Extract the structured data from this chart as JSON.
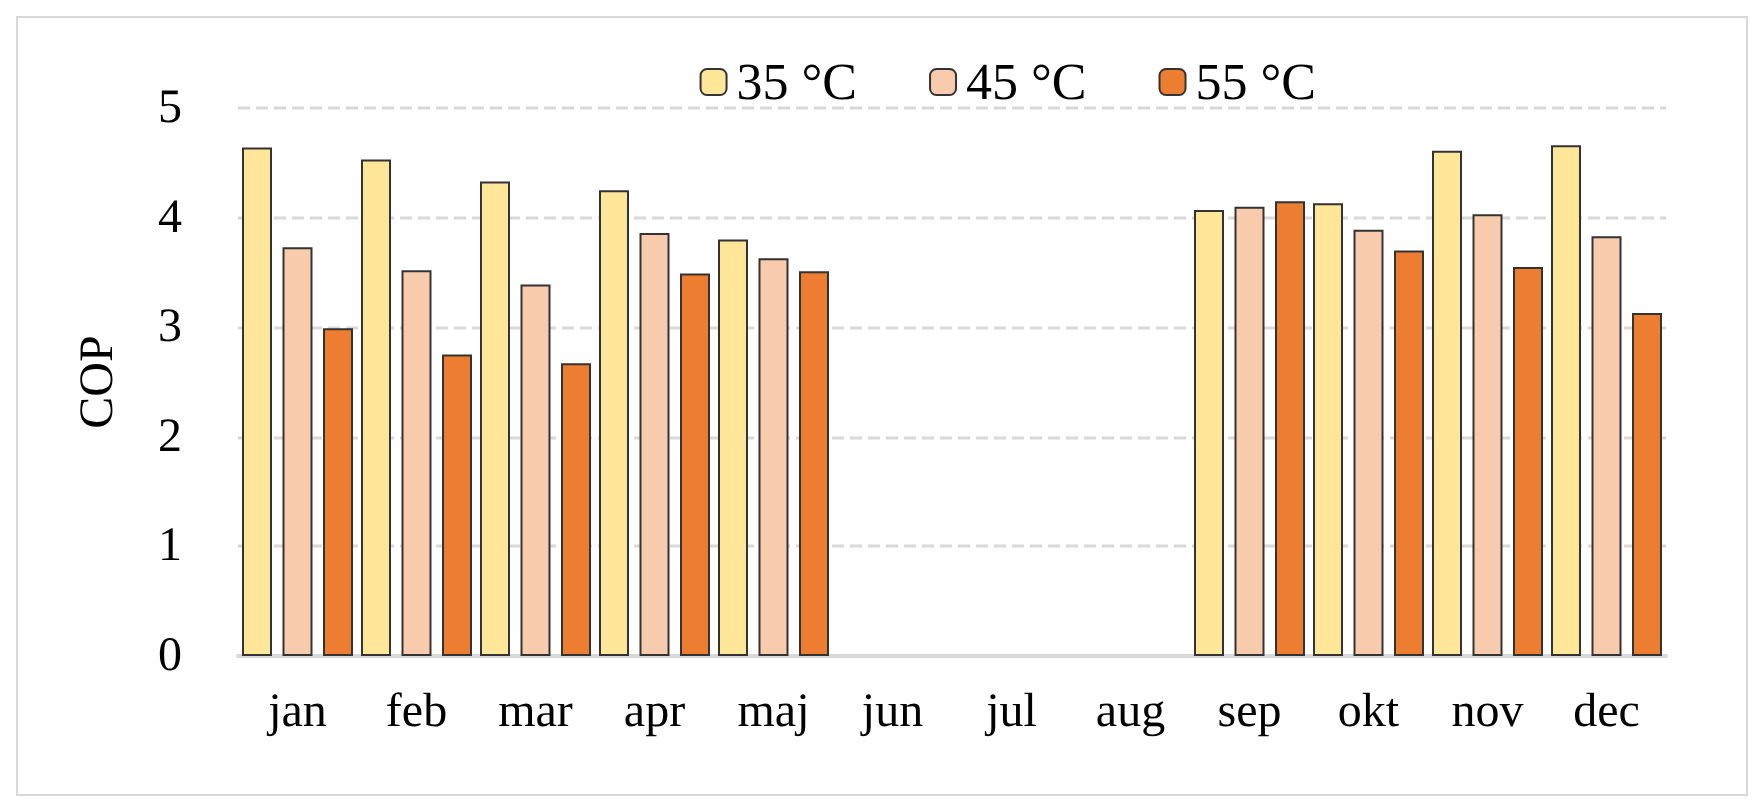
{
  "chart_data": {
    "type": "bar",
    "ylabel": "COP",
    "categories": [
      "jan",
      "feb",
      "mar",
      "apr",
      "maj",
      "jun",
      "jul",
      "aug",
      "sep",
      "okt",
      "nov",
      "dec"
    ],
    "series": [
      {
        "name": "35 °C",
        "color": "#ffe699",
        "values": [
          4.64,
          4.53,
          4.33,
          4.25,
          3.8,
          null,
          null,
          null,
          4.07,
          4.13,
          4.61,
          4.66
        ]
      },
      {
        "name": "45 °C",
        "color": "#f8cbad",
        "values": [
          3.73,
          3.52,
          3.39,
          3.86,
          3.63,
          null,
          null,
          null,
          4.1,
          3.89,
          4.03,
          3.83
        ]
      },
      {
        "name": "55 °C",
        "color": "#ed7d31",
        "values": [
          2.99,
          2.75,
          2.67,
          3.49,
          3.51,
          null,
          null,
          null,
          4.15,
          3.7,
          3.55,
          3.13
        ]
      }
    ],
    "ylim": [
      0,
      5
    ],
    "yticks": [
      0,
      1,
      2,
      3,
      4,
      5
    ],
    "grid": "y",
    "legend": "top right"
  }
}
